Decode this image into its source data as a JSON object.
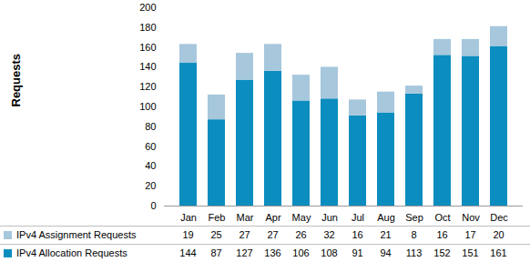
{
  "chart_data": {
    "type": "bar",
    "stacked": true,
    "y_label": "Requests",
    "categories": [
      "Jan",
      "Feb",
      "Mar",
      "Apr",
      "May",
      "Jun",
      "Jul",
      "Aug",
      "Sep",
      "Oct",
      "Nov",
      "Dec"
    ],
    "series": [
      {
        "name": "IPv4 Assignment Requests",
        "color": "#a7c7dc",
        "values": [
          19,
          25,
          27,
          27,
          26,
          32,
          16,
          21,
          8,
          16,
          17,
          20
        ]
      },
      {
        "name": "IPv4 Allocation Requests",
        "color": "#0b8dbf",
        "values": [
          144,
          87,
          127,
          136,
          106,
          108,
          91,
          94,
          113,
          152,
          151,
          161
        ]
      }
    ],
    "ylim": [
      0,
      200
    ],
    "yticks": [
      0,
      20,
      40,
      60,
      80,
      100,
      120,
      140,
      160,
      180,
      200
    ],
    "grid": false
  }
}
